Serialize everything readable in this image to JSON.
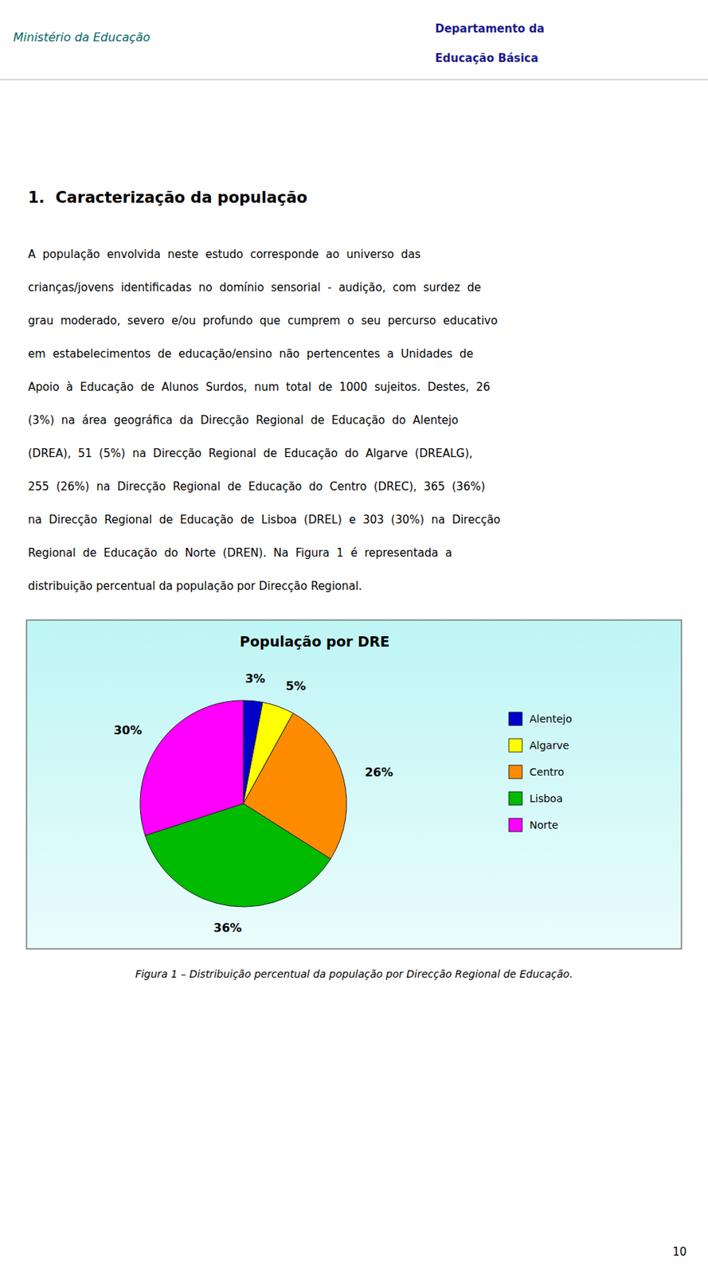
{
  "header_left": "Ministério da Educação",
  "header_right": [
    "Departamento da",
    "Educação Básica"
  ],
  "heading": "1.  Caracterização da população",
  "paragraph": [
    "A  população  envolvida  neste  estudo  corresponde  ao  universo  das",
    "crianças/jovens  identificadas  no  domínio  sensorial  -  audição,  com  surdez  de",
    "grau  moderado,  severo  e/ou  profundo  que  cumprem  o  seu  percurso  educativo",
    "em  estabelecimentos  de  educação/ensino  não  pertencentes  a  Unidades  de",
    "Apoio  à  Educação  de  Alunos  Surdos,  num  total  de  1000  sujeitos.  Destes,  26",
    "(3%)  na  área  geográfica  da  Direcção  Regional  de  Educação  do  Alentejo",
    "(DREA),  51  (5%)  na  Direcção  Regional  de  Educação  do  Algarve  (DREALG),",
    "255  (26%)  na  Direcção  Regional  de  Educação  do  Centro  (DREC),  365  (36%)",
    "na  Direcção  Regional  de  Educação  de  Lisboa  (DREL)  e  303  (30%)  na  Direcção",
    "Regional  de  Educação  do  Norte  (DREN).  Na  Figura  1  é  representada  a",
    "distribuição percentual da população por Direcção Regional."
  ],
  "caption": "Figura 1 – Distribuição percentual da população por Direcção Regional de Educação.",
  "page_number": "10",
  "chart_data": {
    "type": "pie",
    "title": "População por DRE",
    "categories": [
      "Alentejo",
      "Algarve",
      "Centro",
      "Lisboa",
      "Norte"
    ],
    "values": [
      3,
      5,
      26,
      36,
      30
    ],
    "value_labels": [
      "3%",
      "5%",
      "26%",
      "36%",
      "30%"
    ],
    "colors": [
      "#0000CC",
      "#FFFF00",
      "#FF8C00",
      "#00BB00",
      "#FF00FF"
    ],
    "data_labels": true,
    "legend": "right"
  }
}
